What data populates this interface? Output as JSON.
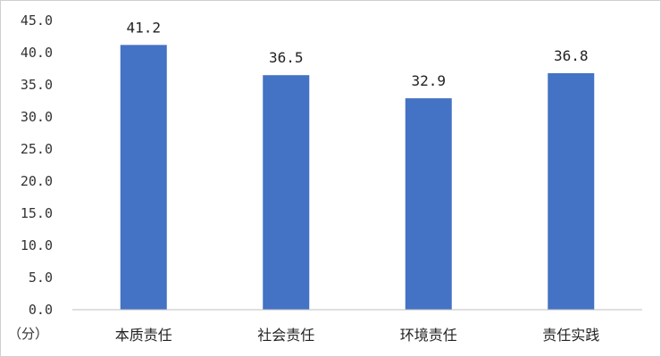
{
  "chart_data": {
    "type": "bar",
    "categories": [
      "本质责任",
      "社会责任",
      "环境责任",
      "责任实践"
    ],
    "values": [
      41.2,
      36.5,
      32.9,
      36.8
    ],
    "data_labels": [
      "41.2",
      "36.5",
      "32.9",
      "36.8"
    ],
    "y_ticks": [
      "0.0",
      "5.0",
      "10.0",
      "15.0",
      "20.0",
      "25.0",
      "30.0",
      "35.0",
      "40.0",
      "45.0"
    ],
    "ylim": [
      0,
      45
    ],
    "unit_label": "（分）",
    "title": "",
    "xlabel": "",
    "ylabel": "",
    "bar_color": "#4472C4",
    "grid": false,
    "legend": "none"
  }
}
